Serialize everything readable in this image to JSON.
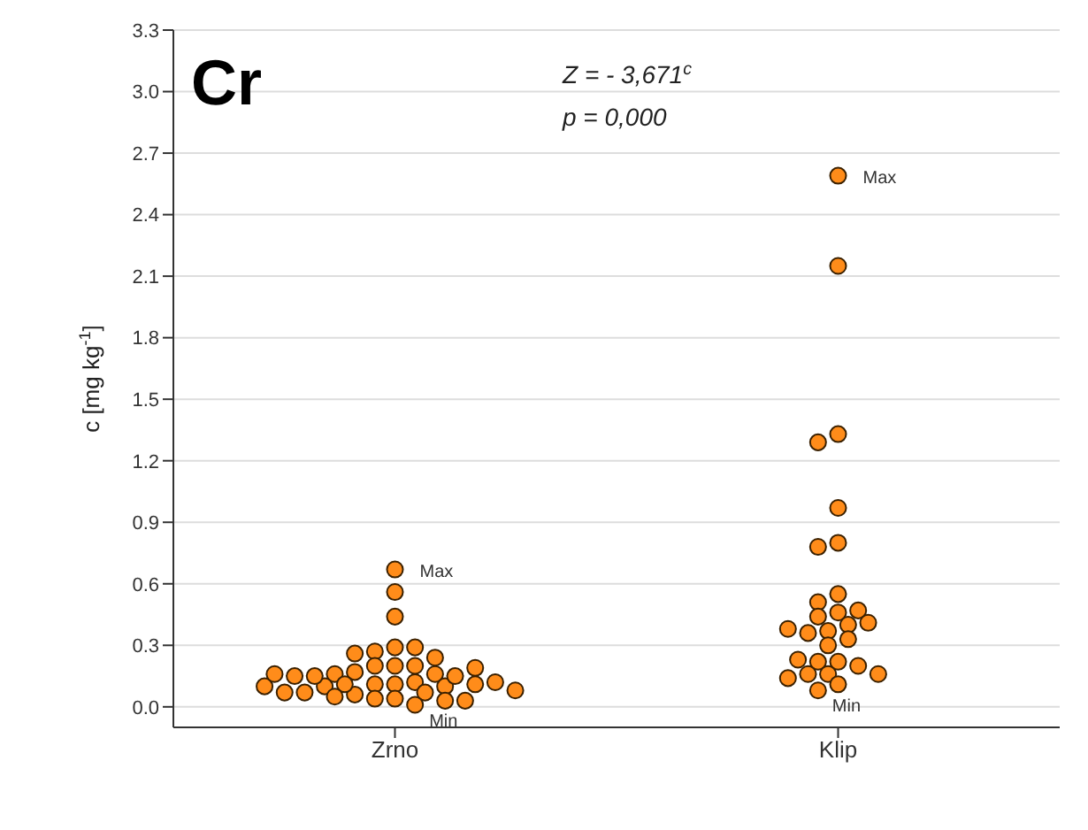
{
  "chart_data": {
    "type": "scatter",
    "categories": [
      "Zrno",
      "Klip"
    ],
    "ylabel": "c [mg kg$^{-1}$]",
    "ylim": [
      -0.1,
      3.3
    ],
    "yticks": [
      {
        "value": 0,
        "label": "0.0"
      },
      0.3,
      0.6,
      0.9,
      1.2,
      1.5,
      1.8,
      2.1,
      2.4,
      2.7,
      {
        "value": 3,
        "label": "3.0"
      },
      3.3
    ],
    "grid": "y",
    "marker": "circle",
    "legend": false,
    "series": [
      {
        "color": "#ff8c1a",
        "x": [
          "Zrno",
          "Zrno",
          "Zrno",
          "Zrno",
          "Zrno",
          "Zrno",
          "Zrno",
          "Zrno",
          "Zrno",
          "Zrno",
          "Zrno",
          "Zrno",
          "Zrno",
          "Zrno",
          "Zrno",
          "Zrno",
          "Zrno",
          "Zrno",
          "Zrno",
          "Zrno",
          "Zrno",
          "Zrno",
          "Zrno",
          "Zrno",
          "Zrno",
          "Zrno",
          "Zrno",
          "Zrno",
          "Zrno",
          "Zrno",
          "Zrno",
          "Zrno",
          "Zrno",
          "Zrno",
          "Zrno",
          "Zrno",
          "Zrno",
          "Zrno",
          "Zrno",
          "Klip",
          "Klip",
          "Klip",
          "Klip",
          "Klip",
          "Klip",
          "Klip",
          "Klip",
          "Klip",
          "Klip",
          "Klip",
          "Klip",
          "Klip",
          "Klip",
          "Klip",
          "Klip",
          "Klip",
          "Klip",
          "Klip",
          "Klip",
          "Klip",
          "Klip",
          "Klip",
          "Klip",
          "Klip",
          "Klip",
          "Klip",
          "Klip",
          "Klip"
        ],
        "values": [
          0.67,
          0.56,
          0.44,
          0.29,
          0.27,
          0.29,
          0.26,
          0.2,
          0.2,
          0.2,
          0.17,
          0.11,
          0.11,
          0.12,
          0.16,
          0.16,
          0.07,
          0.04,
          0.04,
          0.06,
          0.1,
          0.11,
          0.1,
          0.15,
          0.05,
          0.03,
          0.11,
          0.15,
          0.15,
          0.12,
          0.07,
          0.07,
          0.08,
          0.1,
          0.03,
          0.01,
          0.24,
          0.16,
          0.19,
          2.59,
          2.15,
          1.33,
          1.29,
          0.97,
          0.8,
          0.78,
          0.55,
          0.51,
          0.46,
          0.44,
          0.47,
          0.4,
          0.41,
          0.37,
          0.36,
          0.38,
          0.33,
          0.3,
          0.22,
          0.22,
          0.16,
          0.2,
          0.16,
          0.16,
          0.11,
          0.14,
          0.23,
          0.08
        ]
      }
    ],
    "annotations": [
      "Cr",
      "Z = - 3,671$^{c}$",
      "p = 0,000",
      {
        "text": "Max",
        "x": "Zrno",
        "y": 0.67
      },
      {
        "text": "Min",
        "x": "Zrno",
        "y": 0.01
      },
      {
        "text": "Max",
        "x": "Klip",
        "y": 2.59
      },
      {
        "text": "Min",
        "x": "Klip",
        "y": 0.08
      }
    ]
  }
}
